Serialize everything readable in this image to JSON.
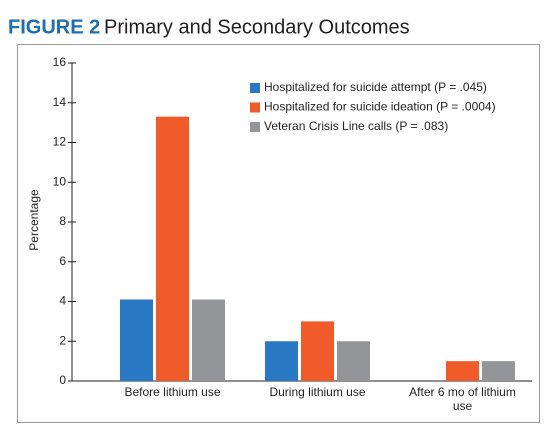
{
  "chart_data": {
    "type": "bar",
    "figure_label": "FIGURE 2",
    "title": "Primary and Secondary Outcomes",
    "y_label": "Percentage",
    "categories": [
      "Before lithium use",
      "During lithium use",
      "After 6 mo of lithium use"
    ],
    "series": [
      {
        "name": "Hospitalized for suicide attempt (P = .045)",
        "color": "#2878c3",
        "values": [
          4.1,
          2.0,
          0
        ]
      },
      {
        "name": "Hospitalized for suicide ideation (P = .0004)",
        "color": "#f15a29",
        "values": [
          13.3,
          3.0,
          1.0
        ]
      },
      {
        "name": "Veteran Crisis Line calls  (P = .083)",
        "color": "#939598",
        "values": [
          4.1,
          2.0,
          1.0
        ]
      }
    ],
    "ylim": [
      0,
      16
    ],
    "yticks": [
      0,
      2,
      4,
      6,
      8,
      10,
      12,
      14,
      16
    ],
    "legend": "top-right"
  }
}
